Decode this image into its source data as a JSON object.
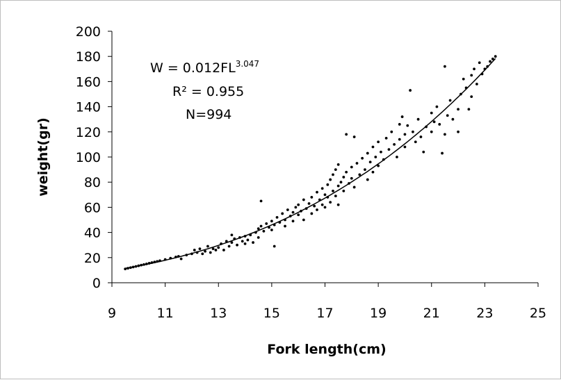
{
  "chart_data": {
    "type": "scatter",
    "xlabel": "Fork length(cm)",
    "ylabel": "weight(gr)",
    "xlim": [
      9,
      25
    ],
    "ylim": [
      0,
      200
    ],
    "xticks": [
      "9",
      "11",
      "13",
      "15",
      "17",
      "19",
      "21",
      "23",
      "25"
    ],
    "yticks": [
      "0",
      "20",
      "40",
      "60",
      "80",
      "100",
      "120",
      "140",
      "160",
      "180",
      "200"
    ],
    "annotations": {
      "equation_base": "W = 0.012FL",
      "equation_exponent": "3.047",
      "r_squared": "R² = 0.955",
      "n": "N=994"
    },
    "trendline": {
      "type": "power",
      "a": 0.012,
      "b": 3.047,
      "x_range": [
        9.5,
        23.4
      ]
    },
    "point_color": "#000000",
    "line_color": "#000000",
    "grid": false,
    "legend": "none",
    "series": [
      {
        "points": [
          [
            9.5,
            11
          ],
          [
            9.6,
            11.5
          ],
          [
            9.7,
            12
          ],
          [
            9.8,
            12.5
          ],
          [
            9.9,
            13
          ],
          [
            10.0,
            13.5
          ],
          [
            10.1,
            14
          ],
          [
            10.2,
            14.5
          ],
          [
            10.3,
            15
          ],
          [
            10.4,
            15.5
          ],
          [
            10.5,
            16
          ],
          [
            10.6,
            16.5
          ],
          [
            10.7,
            17
          ],
          [
            10.8,
            17.5
          ],
          [
            11.0,
            18.5
          ],
          [
            11.2,
            19.5
          ],
          [
            11.4,
            20.5
          ],
          [
            11.5,
            21
          ],
          [
            11.6,
            19
          ],
          [
            11.8,
            22
          ],
          [
            12.0,
            23
          ],
          [
            12.1,
            26
          ],
          [
            12.2,
            24
          ],
          [
            12.3,
            27
          ],
          [
            12.4,
            23
          ],
          [
            12.5,
            25
          ],
          [
            12.6,
            29
          ],
          [
            12.7,
            24
          ],
          [
            12.8,
            27
          ],
          [
            12.9,
            26
          ],
          [
            13.0,
            28
          ],
          [
            13.1,
            31
          ],
          [
            13.2,
            26
          ],
          [
            13.3,
            33
          ],
          [
            13.4,
            29
          ],
          [
            13.5,
            38
          ],
          [
            13.5,
            32
          ],
          [
            13.6,
            35
          ],
          [
            13.7,
            30
          ],
          [
            13.8,
            36
          ],
          [
            13.9,
            33
          ],
          [
            14.0,
            31
          ],
          [
            14.0,
            37
          ],
          [
            14.1,
            34
          ],
          [
            14.2,
            38
          ],
          [
            14.3,
            32
          ],
          [
            14.4,
            40
          ],
          [
            14.5,
            43
          ],
          [
            14.5,
            36
          ],
          [
            14.6,
            45
          ],
          [
            14.6,
            65
          ],
          [
            14.7,
            41
          ],
          [
            14.8,
            47
          ],
          [
            14.9,
            44
          ],
          [
            15.0,
            49
          ],
          [
            15.0,
            42
          ],
          [
            15.1,
            46
          ],
          [
            15.1,
            29
          ],
          [
            15.2,
            52
          ],
          [
            15.3,
            48
          ],
          [
            15.4,
            55
          ],
          [
            15.5,
            50
          ],
          [
            15.5,
            45
          ],
          [
            15.6,
            58
          ],
          [
            15.7,
            53
          ],
          [
            15.8,
            56
          ],
          [
            15.8,
            49
          ],
          [
            15.9,
            60
          ],
          [
            16.0,
            54
          ],
          [
            16.0,
            62
          ],
          [
            16.1,
            57
          ],
          [
            16.2,
            50
          ],
          [
            16.2,
            66
          ],
          [
            16.3,
            59
          ],
          [
            16.4,
            63
          ],
          [
            16.5,
            55
          ],
          [
            16.5,
            68
          ],
          [
            16.6,
            61
          ],
          [
            16.7,
            72
          ],
          [
            16.7,
            58
          ],
          [
            16.8,
            66
          ],
          [
            16.9,
            75
          ],
          [
            16.9,
            62
          ],
          [
            17.0,
            70
          ],
          [
            17.0,
            60
          ],
          [
            17.1,
            78
          ],
          [
            17.1,
            68
          ],
          [
            17.2,
            64
          ],
          [
            17.2,
            82
          ],
          [
            17.3,
            73
          ],
          [
            17.3,
            86
          ],
          [
            17.4,
            69
          ],
          [
            17.4,
            90
          ],
          [
            17.5,
            77
          ],
          [
            17.5,
            94
          ],
          [
            17.5,
            62
          ],
          [
            17.6,
            80
          ],
          [
            17.7,
            84
          ],
          [
            17.7,
            73
          ],
          [
            17.8,
            118
          ],
          [
            17.8,
            88
          ],
          [
            17.9,
            79
          ],
          [
            18.0,
            92
          ],
          [
            18.0,
            83
          ],
          [
            18.1,
            116
          ],
          [
            18.1,
            76
          ],
          [
            18.2,
            95
          ],
          [
            18.3,
            86
          ],
          [
            18.4,
            99
          ],
          [
            18.5,
            90
          ],
          [
            18.6,
            103
          ],
          [
            18.6,
            82
          ],
          [
            18.7,
            96
          ],
          [
            18.8,
            108
          ],
          [
            18.8,
            88
          ],
          [
            18.9,
            100
          ],
          [
            19.0,
            112
          ],
          [
            19.0,
            93
          ],
          [
            19.1,
            104
          ],
          [
            19.2,
            98
          ],
          [
            19.3,
            115
          ],
          [
            19.4,
            106
          ],
          [
            19.5,
            120
          ],
          [
            19.6,
            110
          ],
          [
            19.7,
            100
          ],
          [
            19.8,
            126
          ],
          [
            19.8,
            114
          ],
          [
            19.9,
            132
          ],
          [
            20.0,
            118
          ],
          [
            20.0,
            108
          ],
          [
            20.1,
            125
          ],
          [
            20.2,
            153
          ],
          [
            20.3,
            120
          ],
          [
            20.4,
            112
          ],
          [
            20.5,
            130
          ],
          [
            20.6,
            116
          ],
          [
            20.7,
            104
          ],
          [
            20.8,
            124
          ],
          [
            21.0,
            135
          ],
          [
            21.0,
            120
          ],
          [
            21.1,
            128
          ],
          [
            21.2,
            140
          ],
          [
            21.3,
            126
          ],
          [
            21.4,
            103
          ],
          [
            21.5,
            118
          ],
          [
            21.5,
            172
          ],
          [
            21.6,
            133
          ],
          [
            21.7,
            145
          ],
          [
            21.8,
            130
          ],
          [
            22.0,
            138
          ],
          [
            22.0,
            120
          ],
          [
            22.1,
            150
          ],
          [
            22.2,
            162
          ],
          [
            22.3,
            155
          ],
          [
            22.4,
            138
          ],
          [
            22.5,
            165
          ],
          [
            22.5,
            148
          ],
          [
            22.6,
            170
          ],
          [
            22.7,
            158
          ],
          [
            22.8,
            175
          ],
          [
            22.9,
            166
          ],
          [
            23.0,
            170
          ],
          [
            23.1,
            172
          ],
          [
            23.2,
            176
          ],
          [
            23.3,
            178
          ],
          [
            23.4,
            180
          ]
        ]
      }
    ]
  }
}
